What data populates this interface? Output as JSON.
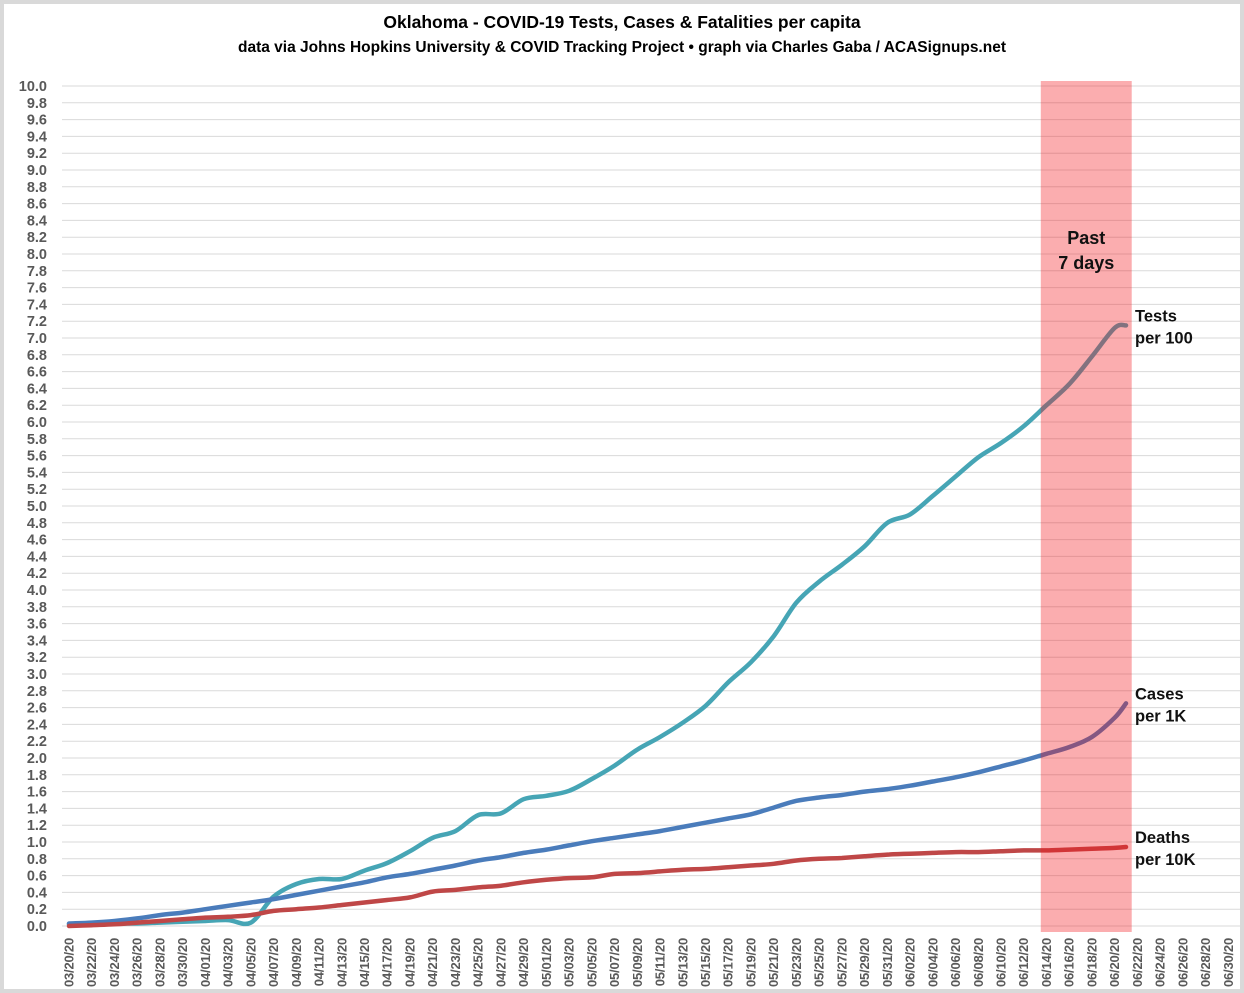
{
  "title": "Oklahoma - COVID-19 Tests, Cases & Fatalities per capita",
  "subtitle": "data via Johns Hopkins University & COVID Tracking Project • graph via Charles Gaba / ACASignups.net",
  "chart_data": {
    "type": "line",
    "grid": true,
    "ylim": [
      0,
      10
    ],
    "y_tick_step": 0.2,
    "axis_label_color": "#595959",
    "grid_color": "#dadada",
    "x_tick_labels": [
      "03/20/20",
      "03/22/20",
      "03/24/20",
      "03/26/20",
      "03/28/20",
      "03/30/20",
      "04/01/20",
      "04/03/20",
      "04/05/20",
      "04/07/20",
      "04/09/20",
      "04/11/20",
      "04/13/20",
      "04/15/20",
      "04/17/20",
      "04/19/20",
      "04/21/20",
      "04/23/20",
      "04/25/20",
      "04/27/20",
      "04/29/20",
      "05/01/20",
      "05/03/20",
      "05/05/20",
      "05/07/20",
      "05/09/20",
      "05/11/20",
      "05/13/20",
      "05/15/20",
      "05/17/20",
      "05/19/20",
      "05/21/20",
      "05/23/20",
      "05/25/20",
      "05/27/20",
      "05/29/20",
      "05/31/20",
      "06/02/20",
      "06/04/20",
      "06/06/20",
      "06/08/20",
      "06/10/20",
      "06/12/20",
      "06/14/20",
      "06/16/20",
      "06/18/20",
      "06/20/20",
      "06/22/20",
      "06/24/20",
      "06/26/20",
      "06/28/20",
      "06/30/20"
    ],
    "x": [
      "03/20/20",
      "03/22/20",
      "03/24/20",
      "03/26/20",
      "03/28/20",
      "03/30/20",
      "04/01/20",
      "04/03/20",
      "04/05/20",
      "04/07/20",
      "04/09/20",
      "04/11/20",
      "04/13/20",
      "04/15/20",
      "04/17/20",
      "04/19/20",
      "04/21/20",
      "04/23/20",
      "04/25/20",
      "04/27/20",
      "04/29/20",
      "05/01/20",
      "05/03/20",
      "05/05/20",
      "05/07/20",
      "05/09/20",
      "05/11/20",
      "05/13/20",
      "05/15/20",
      "05/17/20",
      "05/19/20",
      "05/21/20",
      "05/23/20",
      "05/25/20",
      "05/27/20",
      "05/29/20",
      "05/31/20",
      "06/02/20",
      "06/04/20",
      "06/06/20",
      "06/08/20",
      "06/10/20",
      "06/12/20",
      "06/14/20",
      "06/16/20",
      "06/18/20",
      "06/20/20",
      "06/21/20"
    ],
    "series": [
      {
        "name": "Tests per 100",
        "label_lines": [
          "Tests",
          "per 100"
        ],
        "color": "#46A5B5",
        "values": [
          0.02,
          0.02,
          0.03,
          0.03,
          0.04,
          0.05,
          0.06,
          0.07,
          0.04,
          0.35,
          0.5,
          0.56,
          0.56,
          0.66,
          0.75,
          0.89,
          1.05,
          1.13,
          1.32,
          1.34,
          1.51,
          1.55,
          1.61,
          1.75,
          1.91,
          2.1,
          2.25,
          2.42,
          2.62,
          2.9,
          3.14,
          3.45,
          3.85,
          4.1,
          4.3,
          4.52,
          4.8,
          4.9,
          5.12,
          5.35,
          5.58,
          5.75,
          5.95,
          6.2,
          6.45,
          6.78,
          7.12,
          7.15
        ]
      },
      {
        "name": "Cases per 1K",
        "label_lines": [
          "Cases",
          "per 1K"
        ],
        "color": "#4A7CBB",
        "values": [
          0.03,
          0.04,
          0.06,
          0.09,
          0.13,
          0.16,
          0.2,
          0.24,
          0.28,
          0.32,
          0.37,
          0.42,
          0.47,
          0.52,
          0.58,
          0.62,
          0.67,
          0.72,
          0.78,
          0.82,
          0.87,
          0.91,
          0.96,
          1.01,
          1.05,
          1.09,
          1.13,
          1.18,
          1.23,
          1.28,
          1.33,
          1.41,
          1.49,
          1.53,
          1.56,
          1.6,
          1.63,
          1.67,
          1.72,
          1.77,
          1.83,
          1.9,
          1.97,
          2.05,
          2.13,
          2.25,
          2.48,
          2.65
        ]
      },
      {
        "name": "Deaths per 10K",
        "label_lines": [
          "Deaths",
          "per 10K"
        ],
        "color": "#BF4747",
        "values": [
          0.0,
          0.01,
          0.02,
          0.04,
          0.06,
          0.08,
          0.1,
          0.11,
          0.13,
          0.18,
          0.2,
          0.22,
          0.25,
          0.28,
          0.31,
          0.34,
          0.41,
          0.43,
          0.46,
          0.48,
          0.52,
          0.55,
          0.57,
          0.58,
          0.62,
          0.63,
          0.65,
          0.67,
          0.68,
          0.7,
          0.72,
          0.74,
          0.78,
          0.8,
          0.81,
          0.83,
          0.85,
          0.86,
          0.87,
          0.88,
          0.88,
          0.89,
          0.9,
          0.9,
          0.91,
          0.92,
          0.93,
          0.94
        ]
      }
    ],
    "highlight_band": {
      "label_lines": [
        "Past",
        "7 days"
      ],
      "start": "06/14/20",
      "end": "06/21/20",
      "color": "#F4151A",
      "opacity": 0.35
    }
  }
}
